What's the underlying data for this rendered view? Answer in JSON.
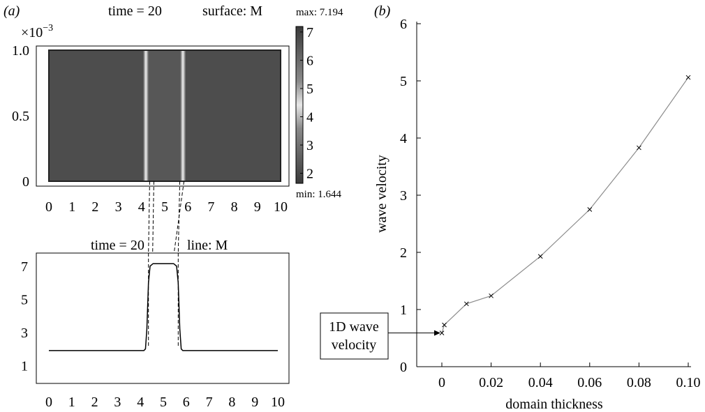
{
  "panel_a_label": "(a)",
  "panel_b_label": "(b)",
  "surface_title_left": "time = 20",
  "surface_title_right": "surface: M",
  "surface_scale_base": "×10",
  "surface_scale_exp": "−3",
  "colorbar_max_text": "max: 7.194",
  "colorbar_min_text": "min: 1.644",
  "line_title_left": "time = 20",
  "line_title_right": "line: M",
  "annotation_text_line1": "1D wave",
  "annotation_text_line2": "velocity",
  "colors": {
    "axis": "#000000",
    "line_b": "#8c8c8c",
    "surface_bg": "#4d4d4d"
  },
  "chart_data": [
    {
      "type": "heatmap",
      "title": "time = 20   surface: M",
      "x_ticks": [
        "0",
        "1",
        "2",
        "3",
        "4",
        "5",
        "6",
        "7",
        "8",
        "9",
        "10"
      ],
      "y_ticks": [
        "0",
        "0.5",
        "1.0"
      ],
      "xlim": [
        0,
        10
      ],
      "ylim": [
        0,
        0.001
      ],
      "y_scale_factor": "×10^−3",
      "colorbar": {
        "min": 1.644,
        "max": 7.194,
        "ticks": [
          "2",
          "3",
          "4",
          "5",
          "6",
          "7"
        ]
      },
      "bright_bands_x": [
        4.35,
        5.65
      ]
    },
    {
      "type": "line",
      "title": "time = 20   line: M",
      "x": [
        0,
        4.15,
        4.22,
        4.28,
        4.35,
        4.42,
        4.55,
        5.45,
        5.58,
        5.65,
        5.72,
        5.78,
        5.85,
        10
      ],
      "y": [
        1.9,
        1.9,
        2.0,
        3.2,
        6.0,
        7.0,
        7.15,
        7.15,
        7.0,
        6.0,
        3.2,
        2.0,
        1.9,
        1.9
      ],
      "x_ticks": [
        "0",
        "1",
        "2",
        "3",
        "4",
        "5",
        "6",
        "7",
        "8",
        "9",
        "10"
      ],
      "y_ticks": [
        "1",
        "3",
        "5",
        "7"
      ],
      "xlim": [
        -0.2,
        10.2
      ],
      "ylim": [
        0,
        8
      ],
      "guide_lines_x": [
        4.35,
        5.65
      ]
    },
    {
      "type": "line",
      "xlabel": "domain thickness",
      "ylabel": "wave velocity",
      "x": [
        0,
        0.001,
        0.01,
        0.02,
        0.04,
        0.06,
        0.08,
        0.1
      ],
      "y": [
        0.59,
        0.73,
        1.1,
        1.24,
        1.93,
        2.75,
        3.83,
        5.06
      ],
      "x_ticks": [
        "0",
        "0.02",
        "0.04",
        "0.06",
        "0.08",
        "0.10"
      ],
      "y_ticks": [
        "0",
        "1",
        "2",
        "3",
        "4",
        "5",
        "6"
      ],
      "xlim": [
        -0.005,
        0.1
      ],
      "ylim": [
        0,
        6
      ],
      "grid": false,
      "marker": "x",
      "annotation": {
        "text": "1D wave velocity",
        "points_to": [
          0,
          0.59
        ]
      }
    }
  ]
}
